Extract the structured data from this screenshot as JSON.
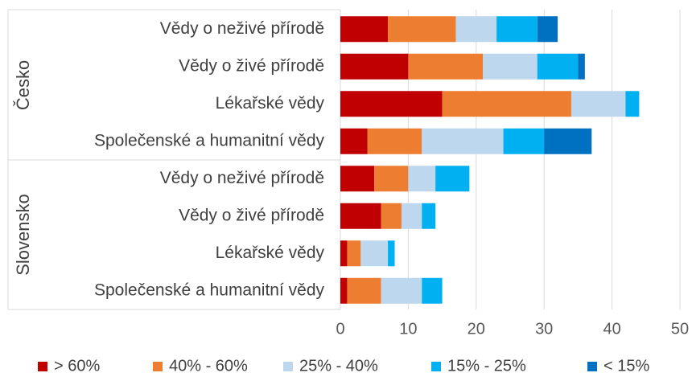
{
  "chart_data": {
    "type": "stacked-barh",
    "groups": [
      {
        "name": "Česko",
        "categories": [
          "Vědy o neživé přírodě",
          "Vědy o živé přírodě",
          "Lékařské vědy",
          "Společenské a humanitní vědy"
        ]
      },
      {
        "name": "Slovensko",
        "categories": [
          "Vědy o neživé přírodě",
          "Vědy o živé přírodě",
          "Lékařské vědy",
          "Společenské a humanitní vědy"
        ]
      }
    ],
    "series": [
      {
        "name": "> 60%",
        "color": "#c00000",
        "values": [
          7,
          10,
          15,
          4,
          5,
          6,
          1,
          1
        ]
      },
      {
        "name": "40% - 60%",
        "color": "#ed7d31",
        "values": [
          10,
          11,
          19,
          8,
          5,
          3,
          2,
          5
        ]
      },
      {
        "name": "25% - 40%",
        "color": "#bdd7ee",
        "values": [
          6,
          8,
          8,
          12,
          4,
          3,
          4,
          6
        ]
      },
      {
        "name": "15% - 25%",
        "color": "#00b0f0",
        "values": [
          6,
          6,
          2,
          6,
          5,
          2,
          1,
          3
        ]
      },
      {
        "name": "< 15%",
        "color": "#0070c0",
        "values": [
          3,
          1,
          0,
          7,
          0,
          0,
          0,
          0
        ]
      }
    ],
    "xlim": [
      0,
      50
    ],
    "xticks": [
      0,
      10,
      20,
      30,
      40,
      50
    ],
    "grid": true,
    "legend": "bottom"
  }
}
